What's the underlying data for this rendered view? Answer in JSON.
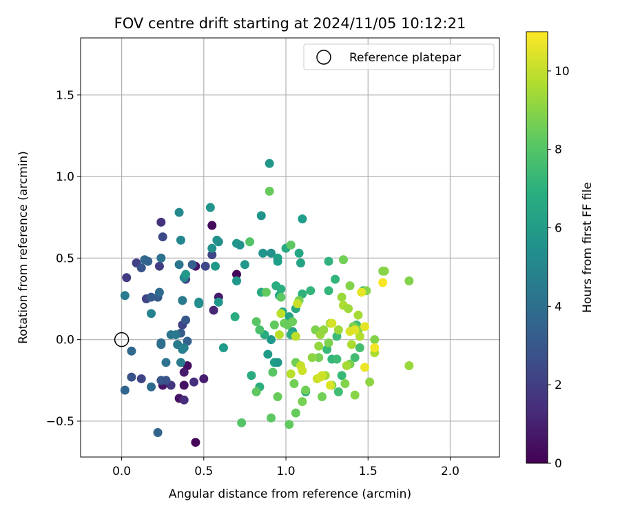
{
  "chart_data": {
    "type": "scatter",
    "title": "FOV centre drift starting at 2024/11/05 10:12:21",
    "xlabel": "Angular distance from reference (arcmin)",
    "ylabel": "Rotation from reference (arcmin)",
    "xlim": [
      -0.25,
      2.3
    ],
    "ylim": [
      -0.72,
      1.85
    ],
    "x_ticks": [
      0.0,
      0.5,
      1.0,
      1.5,
      2.0
    ],
    "x_tick_labels": [
      "0.0",
      "0.5",
      "1.0",
      "1.5",
      "2.0"
    ],
    "y_ticks": [
      -0.5,
      0.0,
      0.5,
      1.0,
      1.5
    ],
    "y_tick_labels": [
      "−0.5",
      "0.0",
      "0.5",
      "1.0",
      "1.5"
    ],
    "grid": true,
    "legend": {
      "placement": "upper right",
      "entries": [
        "Reference platepar"
      ]
    },
    "reference_point": {
      "x": 0.0,
      "y": 0.0,
      "label": "Reference platepar"
    },
    "colorbar": {
      "label": "Hours from first FF file",
      "range": [
        0,
        11
      ],
      "ticks": [
        0,
        2,
        4,
        6,
        8,
        10
      ],
      "tick_labels": [
        "0",
        "2",
        "4",
        "6",
        "8",
        "10"
      ],
      "colormap": "viridis"
    },
    "points": [
      {
        "x": 0.45,
        "y": -0.63,
        "h": 0.2
      },
      {
        "x": 0.22,
        "y": -0.57,
        "h": 3.5
      },
      {
        "x": 0.55,
        "y": 0.7,
        "h": 0.3
      },
      {
        "x": 0.7,
        "y": 0.4,
        "h": 0.2
      },
      {
        "x": 0.4,
        "y": -0.16,
        "h": 0.4
      },
      {
        "x": 0.38,
        "y": -0.2,
        "h": 0.8
      },
      {
        "x": 0.38,
        "y": -0.28,
        "h": 0.5
      },
      {
        "x": 0.35,
        "y": -0.36,
        "h": 0.5
      },
      {
        "x": 0.25,
        "y": -0.28,
        "h": 0.6
      },
      {
        "x": 0.5,
        "y": -0.24,
        "h": 0.9
      },
      {
        "x": 0.45,
        "y": 0.45,
        "h": 0.6
      },
      {
        "x": 0.59,
        "y": 0.26,
        "h": 0.8
      },
      {
        "x": 0.56,
        "y": 0.18,
        "h": 1.2
      },
      {
        "x": 0.24,
        "y": 0.72,
        "h": 1.6
      },
      {
        "x": 0.3,
        "y": -0.28,
        "h": 1.7
      },
      {
        "x": 0.38,
        "y": -0.37,
        "h": 1.4
      },
      {
        "x": 0.44,
        "y": -0.26,
        "h": 1.5
      },
      {
        "x": 0.03,
        "y": 0.38,
        "h": 2.0
      },
      {
        "x": 0.09,
        "y": 0.47,
        "h": 2.1
      },
      {
        "x": 0.12,
        "y": -0.24,
        "h": 2.2
      },
      {
        "x": 0.15,
        "y": 0.25,
        "h": 2.3
      },
      {
        "x": 0.23,
        "y": 0.45,
        "h": 2.0
      },
      {
        "x": 0.25,
        "y": 0.63,
        "h": 2.5
      },
      {
        "x": 0.37,
        "y": 0.09,
        "h": 2.3
      },
      {
        "x": 0.39,
        "y": 0.37,
        "h": 2.2
      },
      {
        "x": 0.51,
        "y": 0.45,
        "h": 2.4
      },
      {
        "x": 0.55,
        "y": 0.52,
        "h": 2.3
      },
      {
        "x": 0.06,
        "y": -0.23,
        "h": 2.8
      },
      {
        "x": 0.12,
        "y": 0.44,
        "h": 2.9
      },
      {
        "x": 0.18,
        "y": 0.26,
        "h": 3.1
      },
      {
        "x": 0.22,
        "y": 0.26,
        "h": 3.1
      },
      {
        "x": 0.24,
        "y": -0.25,
        "h": 3.0
      },
      {
        "x": 0.27,
        "y": -0.25,
        "h": 2.8
      },
      {
        "x": 0.36,
        "y": 0.04,
        "h": 3.2
      },
      {
        "x": 0.39,
        "y": 0.12,
        "h": 3.0
      },
      {
        "x": 0.4,
        "y": -0.01,
        "h": 3.4
      },
      {
        "x": 0.43,
        "y": 0.46,
        "h": 3.3
      },
      {
        "x": 0.02,
        "y": -0.31,
        "h": 3.6
      },
      {
        "x": 0.06,
        "y": -0.07,
        "h": 3.7
      },
      {
        "x": 0.14,
        "y": 0.49,
        "h": 3.7
      },
      {
        "x": 0.16,
        "y": 0.48,
        "h": 3.5
      },
      {
        "x": 0.18,
        "y": -0.29,
        "h": 3.9
      },
      {
        "x": 0.23,
        "y": 0.29,
        "h": 3.8
      },
      {
        "x": 0.24,
        "y": -0.02,
        "h": 3.9
      },
      {
        "x": 0.24,
        "y": -0.03,
        "h": 4.0
      },
      {
        "x": 0.24,
        "y": 0.5,
        "h": 4.2
      },
      {
        "x": 0.27,
        "y": -0.14,
        "h": 4.1
      },
      {
        "x": 0.3,
        "y": 0.03,
        "h": 4.3
      },
      {
        "x": 0.33,
        "y": 0.03,
        "h": 4.4
      },
      {
        "x": 0.34,
        "y": -0.03,
        "h": 4.5
      },
      {
        "x": 0.35,
        "y": 0.46,
        "h": 4.3
      },
      {
        "x": 0.36,
        "y": -0.14,
        "h": 4.6
      },
      {
        "x": 0.37,
        "y": 0.24,
        "h": 4.5
      },
      {
        "x": 0.37,
        "y": -0.06,
        "h": 4.7
      },
      {
        "x": 0.38,
        "y": -0.05,
        "h": 4.8
      },
      {
        "x": 0.02,
        "y": 0.27,
        "h": 4.6
      },
      {
        "x": 0.18,
        "y": 0.16,
        "h": 4.9
      },
      {
        "x": 0.35,
        "y": 0.78,
        "h": 5.2
      },
      {
        "x": 0.36,
        "y": 0.61,
        "h": 5.1
      },
      {
        "x": 0.38,
        "y": 0.38,
        "h": 5.0
      },
      {
        "x": 0.47,
        "y": 0.23,
        "h": 5.3
      },
      {
        "x": 0.47,
        "y": 0.22,
        "h": 5.4
      },
      {
        "x": 0.54,
        "y": 0.81,
        "h": 5.7
      },
      {
        "x": 0.55,
        "y": 0.56,
        "h": 5.5
      },
      {
        "x": 0.57,
        "y": 0.45,
        "h": 5.9
      },
      {
        "x": 0.58,
        "y": 0.61,
        "h": 5.6
      },
      {
        "x": 0.59,
        "y": 0.6,
        "h": 5.5
      },
      {
        "x": 0.59,
        "y": 0.23,
        "h": 5.8
      },
      {
        "x": 0.62,
        "y": -0.05,
        "h": 6.0
      },
      {
        "x": 0.39,
        "y": 0.4,
        "h": 5.9
      },
      {
        "x": 0.7,
        "y": 0.36,
        "h": 5.9
      },
      {
        "x": 0.7,
        "y": 0.59,
        "h": 5.8
      },
      {
        "x": 0.72,
        "y": 0.58,
        "h": 5.6
      },
      {
        "x": 0.75,
        "y": 0.46,
        "h": 5.8
      },
      {
        "x": 0.85,
        "y": 0.76,
        "h": 5.7
      },
      {
        "x": 0.9,
        "y": 1.08,
        "h": 5.8
      },
      {
        "x": 0.86,
        "y": 0.53,
        "h": 5.7
      },
      {
        "x": 0.91,
        "y": 0.53,
        "h": 5.6
      },
      {
        "x": 0.89,
        "y": -0.09,
        "h": 6.0
      },
      {
        "x": 0.91,
        "y": -0.0,
        "h": 5.9
      },
      {
        "x": 0.93,
        "y": -0.14,
        "h": 6.2
      },
      {
        "x": 0.95,
        "y": -0.14,
        "h": 5.9
      },
      {
        "x": 0.95,
        "y": 0.5,
        "h": 6.2
      },
      {
        "x": 0.95,
        "y": 0.48,
        "h": 6.1
      },
      {
        "x": 0.96,
        "y": 0.27,
        "h": 6.3
      },
      {
        "x": 0.98,
        "y": 0.17,
        "h": 6.5
      },
      {
        "x": 1.0,
        "y": 0.56,
        "h": 6.6
      },
      {
        "x": 1.02,
        "y": 0.14,
        "h": 6.4
      },
      {
        "x": 1.04,
        "y": 0.05,
        "h": 6.3
      },
      {
        "x": 1.06,
        "y": 0.19,
        "h": 6.6
      },
      {
        "x": 1.08,
        "y": 0.53,
        "h": 6.5
      },
      {
        "x": 1.09,
        "y": 0.47,
        "h": 6.4
      },
      {
        "x": 1.1,
        "y": 0.74,
        "h": 6.1
      },
      {
        "x": 1.12,
        "y": -0.32,
        "h": 6.7
      },
      {
        "x": 0.84,
        "y": -0.29,
        "h": 6.9
      },
      {
        "x": 0.69,
        "y": 0.14,
        "h": 6.8
      },
      {
        "x": 0.79,
        "y": -0.22,
        "h": 6.7
      },
      {
        "x": 0.85,
        "y": 0.29,
        "h": 6.7
      },
      {
        "x": 0.87,
        "y": 0.03,
        "h": 6.7
      },
      {
        "x": 0.94,
        "y": 0.33,
        "h": 6.8
      },
      {
        "x": 0.97,
        "y": 0.31,
        "h": 6.9
      },
      {
        "x": 1.03,
        "y": 0.03,
        "h": 6.9
      },
      {
        "x": 1.1,
        "y": 0.28,
        "h": 7.0
      },
      {
        "x": 1.15,
        "y": 0.3,
        "h": 7.2
      },
      {
        "x": 1.26,
        "y": 0.48,
        "h": 7.1
      },
      {
        "x": 1.3,
        "y": 0.37,
        "h": 7.2
      },
      {
        "x": 1.26,
        "y": 0.3,
        "h": 7.3
      },
      {
        "x": 1.25,
        "y": -0.06,
        "h": 7.4
      },
      {
        "x": 1.28,
        "y": -0.12,
        "h": 7.3
      },
      {
        "x": 1.31,
        "y": 0.02,
        "h": 7.5
      },
      {
        "x": 1.31,
        "y": -0.12,
        "h": 7.5
      },
      {
        "x": 1.32,
        "y": -0.32,
        "h": 7.6
      },
      {
        "x": 1.34,
        "y": -0.22,
        "h": 7.4
      },
      {
        "x": 1.42,
        "y": -0.11,
        "h": 7.6
      },
      {
        "x": 1.43,
        "y": 0.09,
        "h": 7.6
      },
      {
        "x": 1.45,
        "y": -0.05,
        "h": 7.7
      },
      {
        "x": 1.47,
        "y": 0.3,
        "h": 7.5
      },
      {
        "x": 0.84,
        "y": 0.06,
        "h": 7.8
      },
      {
        "x": 0.73,
        "y": -0.51,
        "h": 8.0
      },
      {
        "x": 0.78,
        "y": 0.6,
        "h": 8.0
      },
      {
        "x": 0.82,
        "y": 0.11,
        "h": 8.1
      },
      {
        "x": 0.82,
        "y": -0.32,
        "h": 8.2
      },
      {
        "x": 0.88,
        "y": 0.29,
        "h": 8.3
      },
      {
        "x": 0.9,
        "y": 0.91,
        "h": 8.4
      },
      {
        "x": 0.91,
        "y": -0.48,
        "h": 8.2
      },
      {
        "x": 0.92,
        "y": -0.2,
        "h": 8.1
      },
      {
        "x": 0.93,
        "y": 0.09,
        "h": 8.3
      },
      {
        "x": 0.95,
        "y": -0.35,
        "h": 8.4
      },
      {
        "x": 0.97,
        "y": 0.26,
        "h": 8.2
      },
      {
        "x": 0.99,
        "y": 0.1,
        "h": 8.5
      },
      {
        "x": 1.01,
        "y": 0.09,
        "h": 8.4
      },
      {
        "x": 1.02,
        "y": -0.52,
        "h": 8.3
      },
      {
        "x": 1.03,
        "y": 0.58,
        "h": 8.2
      },
      {
        "x": 1.04,
        "y": 0.11,
        "h": 8.5
      },
      {
        "x": 1.05,
        "y": -0.27,
        "h": 8.6
      },
      {
        "x": 1.06,
        "y": -0.45,
        "h": 8.4
      },
      {
        "x": 1.06,
        "y": -0.14,
        "h": 8.6
      },
      {
        "x": 1.08,
        "y": 0.24,
        "h": 8.7
      },
      {
        "x": 1.1,
        "y": -0.38,
        "h": 8.7
      },
      {
        "x": 1.12,
        "y": -0.31,
        "h": 8.6
      },
      {
        "x": 1.18,
        "y": 0.06,
        "h": 8.8
      },
      {
        "x": 1.2,
        "y": -0.11,
        "h": 8.7
      },
      {
        "x": 1.22,
        "y": -0.35,
        "h": 8.6
      },
      {
        "x": 1.26,
        "y": -0.02,
        "h": 8.8
      },
      {
        "x": 1.28,
        "y": -0.28,
        "h": 8.9
      },
      {
        "x": 1.35,
        "y": 0.49,
        "h": 8.6
      },
      {
        "x": 1.36,
        "y": -0.27,
        "h": 8.9
      },
      {
        "x": 1.39,
        "y": -0.15,
        "h": 8.7
      },
      {
        "x": 1.39,
        "y": 0.33,
        "h": 8.9
      },
      {
        "x": 1.41,
        "y": 0.08,
        "h": 8.8
      },
      {
        "x": 1.42,
        "y": -0.34,
        "h": 9.0
      },
      {
        "x": 1.44,
        "y": 0.06,
        "h": 8.9
      },
      {
        "x": 1.49,
        "y": 0.3,
        "h": 9.0
      },
      {
        "x": 1.51,
        "y": -0.26,
        "h": 9.1
      },
      {
        "x": 1.54,
        "y": -0.0,
        "h": 8.9
      },
      {
        "x": 1.59,
        "y": 0.42,
        "h": 8.9
      },
      {
        "x": 1.6,
        "y": 0.42,
        "h": 9.0
      },
      {
        "x": 1.75,
        "y": 0.36,
        "h": 8.9
      },
      {
        "x": 1.75,
        "y": -0.16,
        "h": 9.3
      },
      {
        "x": 1.16,
        "y": -0.11,
        "h": 9.1
      },
      {
        "x": 1.2,
        "y": -0.04,
        "h": 9.2
      },
      {
        "x": 1.21,
        "y": 0.03,
        "h": 9.3
      },
      {
        "x": 1.23,
        "y": 0.06,
        "h": 9.2
      },
      {
        "x": 1.24,
        "y": -0.22,
        "h": 9.4
      },
      {
        "x": 1.27,
        "y": 0.1,
        "h": 9.5
      },
      {
        "x": 1.32,
        "y": 0.06,
        "h": 9.4
      },
      {
        "x": 1.34,
        "y": 0.26,
        "h": 9.3
      },
      {
        "x": 1.35,
        "y": 0.21,
        "h": 9.6
      },
      {
        "x": 1.37,
        "y": -0.16,
        "h": 9.5
      },
      {
        "x": 1.38,
        "y": 0.19,
        "h": 9.4
      },
      {
        "x": 1.4,
        "y": -0.03,
        "h": 9.6
      },
      {
        "x": 1.44,
        "y": 0.15,
        "h": 9.5
      },
      {
        "x": 1.45,
        "y": 0.02,
        "h": 9.7
      },
      {
        "x": 1.54,
        "y": -0.08,
        "h": 9.6
      },
      {
        "x": 0.96,
        "y": 0.03,
        "h": 9.8
      },
      {
        "x": 0.97,
        "y": 0.16,
        "h": 9.9
      },
      {
        "x": 1.03,
        "y": -0.21,
        "h": 9.8
      },
      {
        "x": 1.06,
        "y": 0.02,
        "h": 9.9
      },
      {
        "x": 1.07,
        "y": 0.22,
        "h": 10.1
      },
      {
        "x": 1.09,
        "y": -0.16,
        "h": 10.0
      },
      {
        "x": 1.1,
        "y": -0.19,
        "h": 10.2
      },
      {
        "x": 1.19,
        "y": -0.24,
        "h": 10.1
      },
      {
        "x": 1.21,
        "y": -0.23,
        "h": 10.3
      },
      {
        "x": 1.22,
        "y": -0.22,
        "h": 10.2
      },
      {
        "x": 1.27,
        "y": -0.28,
        "h": 10.4
      },
      {
        "x": 1.28,
        "y": 0.1,
        "h": 10.3
      },
      {
        "x": 1.39,
        "y": 0.05,
        "h": 10.4
      },
      {
        "x": 1.42,
        "y": 0.06,
        "h": 10.5
      },
      {
        "x": 1.46,
        "y": 0.29,
        "h": 10.6
      },
      {
        "x": 1.48,
        "y": -0.17,
        "h": 10.7
      },
      {
        "x": 1.48,
        "y": 0.08,
        "h": 10.6
      },
      {
        "x": 1.54,
        "y": -0.05,
        "h": 10.8
      },
      {
        "x": 1.59,
        "y": 0.35,
        "h": 10.9
      }
    ]
  }
}
